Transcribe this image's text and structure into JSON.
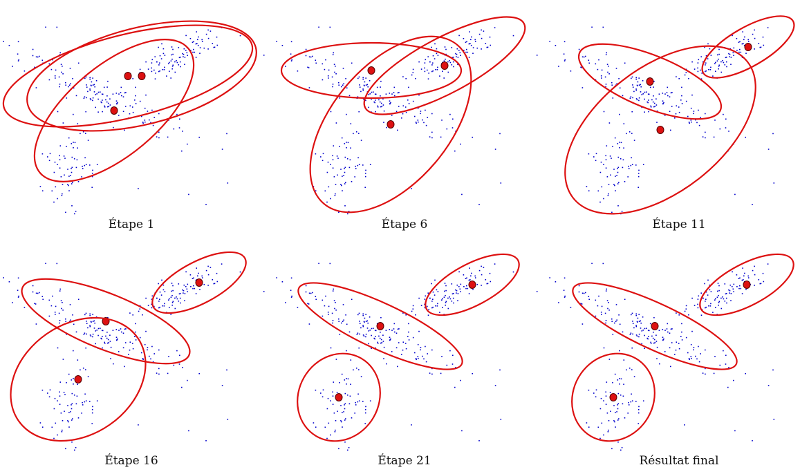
{
  "figure": {
    "colors": {
      "points": "#0000cc",
      "ellipse": "#dd1111",
      "center_fill": "#dd1111",
      "center_stroke": "#550000",
      "caption": "#111111"
    },
    "panels": [
      {
        "caption": "Étape 1"
      },
      {
        "caption": "Étape 6"
      },
      {
        "caption": "Étape 11"
      },
      {
        "caption": "Étape 16"
      },
      {
        "caption": "Étape 21"
      },
      {
        "caption": "Résultat final"
      }
    ]
  }
}
